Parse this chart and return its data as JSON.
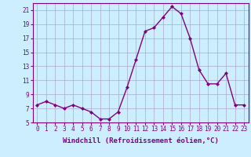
{
  "x": [
    0,
    1,
    2,
    3,
    4,
    5,
    6,
    7,
    8,
    9,
    10,
    11,
    12,
    13,
    14,
    15,
    16,
    17,
    18,
    19,
    20,
    21,
    22,
    23
  ],
  "y": [
    7.5,
    8.0,
    7.5,
    7.0,
    7.5,
    7.0,
    6.5,
    5.5,
    5.5,
    6.5,
    10.0,
    14.0,
    18.0,
    18.5,
    20.0,
    21.5,
    20.5,
    17.0,
    12.5,
    10.5,
    10.5,
    12.0,
    7.5,
    7.5
  ],
  "ylim": [
    5,
    22
  ],
  "xlim": [
    -0.5,
    23.5
  ],
  "yticks": [
    5,
    7,
    9,
    11,
    13,
    15,
    17,
    19,
    21
  ],
  "xticks": [
    0,
    1,
    2,
    3,
    4,
    5,
    6,
    7,
    8,
    9,
    10,
    11,
    12,
    13,
    14,
    15,
    16,
    17,
    18,
    19,
    20,
    21,
    22,
    23
  ],
  "xlabel": "Windchill (Refroidissement éolien,°C)",
  "line_color": "#800080",
  "marker": "D",
  "marker_size": 2.0,
  "bg_color": "#cceeff",
  "grid_color": "#aaaacc",
  "axis_color": "#800080",
  "tick_color": "#800080",
  "label_color": "#800080",
  "xlabel_fontsize": 6.5,
  "tick_fontsize": 5.5,
  "linewidth": 1.0
}
